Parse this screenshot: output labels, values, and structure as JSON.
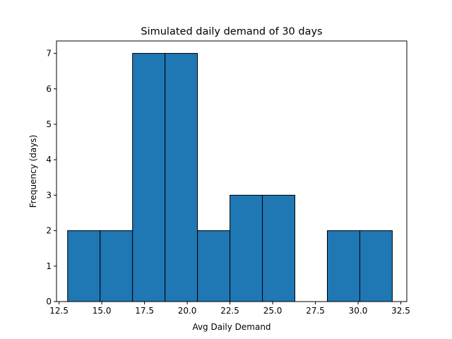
{
  "chart_data": {
    "type": "bar",
    "title": "Simulated daily demand of 30 days",
    "xlabel": "Avg Daily Demand",
    "ylabel": "Frequency (days)",
    "xlim": [
      12.35,
      32.85
    ],
    "ylim": [
      0,
      7.35
    ],
    "xticks": [
      12.5,
      15.0,
      17.5,
      20.0,
      22.5,
      25.0,
      27.5,
      30.0,
      32.5
    ],
    "xtick_labels": [
      "12.5",
      "15.0",
      "17.5",
      "20.0",
      "22.5",
      "25.0",
      "27.5",
      "30.0",
      "32.5"
    ],
    "yticks": [
      0,
      1,
      2,
      3,
      4,
      5,
      6,
      7
    ],
    "ytick_labels": [
      "0",
      "1",
      "2",
      "3",
      "4",
      "5",
      "6",
      "7"
    ],
    "bin_edges": [
      13.0,
      14.9,
      16.8,
      18.7,
      20.6,
      22.5,
      24.4,
      26.3,
      28.2,
      30.1,
      32.0
    ],
    "values": [
      2,
      2,
      7,
      7,
      2,
      3,
      3,
      0,
      2,
      2
    ],
    "bar_color": "#1f77b4",
    "edge_color": "#000000",
    "grid": false,
    "legend": false
  }
}
